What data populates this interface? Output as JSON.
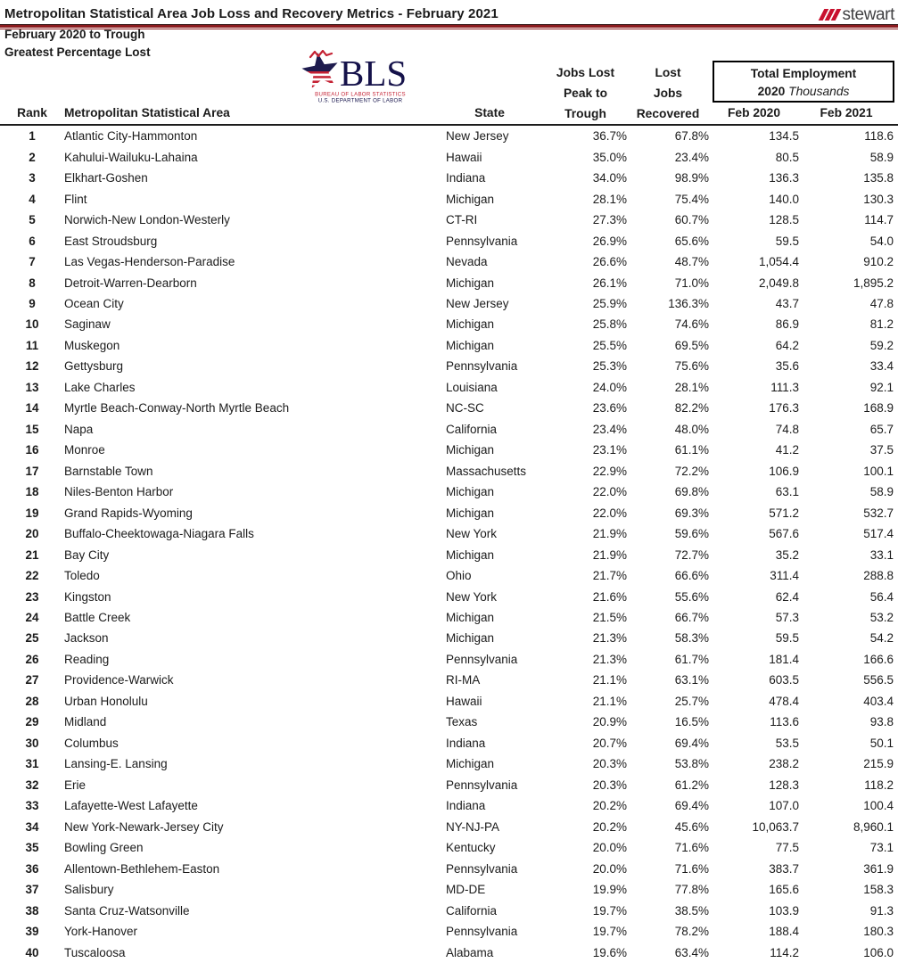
{
  "header": {
    "title": "Metropolitan Statistical Area Job Loss and Recovery Metrics - February 2021",
    "brand": "stewart",
    "subtitle_line1": "February 2020 to Trough",
    "subtitle_line2": "Greatest Percentage Lost"
  },
  "bls_logo": {
    "acronym": "BLS",
    "line1": "BUREAU OF LABOR STATISTICS",
    "line2": "U.S. DEPARTMENT OF LABOR"
  },
  "columns": {
    "rank": "Rank",
    "msa": "Metropolitan Statistical Area",
    "state": "State",
    "jobs_lost_lines": [
      "Jobs Lost",
      "Peak to",
      "Trough"
    ],
    "recovered_lines": [
      "Lost",
      "Jobs",
      "Recovered"
    ],
    "total_employment": {
      "line1": "Total Employment",
      "year": "2020",
      "unit": "Thousands"
    },
    "feb2020": "Feb 2020",
    "feb2021": "Feb 2021"
  },
  "colors": {
    "title_rule_red": "#8c1c1f",
    "stewart_red": "#c8102e",
    "stewart_gray": "#414143",
    "bls_navy": "#1e1b4e",
    "bls_red": "#c42032",
    "text": "#1b1b1b"
  },
  "table": {
    "rows": [
      [
        "1",
        "Atlantic City-Hammonton",
        "New Jersey",
        "36.7%",
        "67.8%",
        "134.5",
        "118.6"
      ],
      [
        "2",
        "Kahului-Wailuku-Lahaina",
        "Hawaii",
        "35.0%",
        "23.4%",
        "80.5",
        "58.9"
      ],
      [
        "3",
        "Elkhart-Goshen",
        "Indiana",
        "34.0%",
        "98.9%",
        "136.3",
        "135.8"
      ],
      [
        "4",
        "Flint",
        "Michigan",
        "28.1%",
        "75.4%",
        "140.0",
        "130.3"
      ],
      [
        "5",
        "Norwich-New London-Westerly",
        "CT-RI",
        "27.3%",
        "60.7%",
        "128.5",
        "114.7"
      ],
      [
        "6",
        "East Stroudsburg",
        "Pennsylvania",
        "26.9%",
        "65.6%",
        "59.5",
        "54.0"
      ],
      [
        "7",
        "Las Vegas-Henderson-Paradise",
        "Nevada",
        "26.6%",
        "48.7%",
        "1,054.4",
        "910.2"
      ],
      [
        "8",
        "Detroit-Warren-Dearborn",
        "Michigan",
        "26.1%",
        "71.0%",
        "2,049.8",
        "1,895.2"
      ],
      [
        "9",
        "Ocean City",
        "New Jersey",
        "25.9%",
        "136.3%",
        "43.7",
        "47.8"
      ],
      [
        "10",
        "Saginaw",
        "Michigan",
        "25.8%",
        "74.6%",
        "86.9",
        "81.2"
      ],
      [
        "11",
        "Muskegon",
        "Michigan",
        "25.5%",
        "69.5%",
        "64.2",
        "59.2"
      ],
      [
        "12",
        "Gettysburg",
        "Pennsylvania",
        "25.3%",
        "75.6%",
        "35.6",
        "33.4"
      ],
      [
        "13",
        "Lake Charles",
        "Louisiana",
        "24.0%",
        "28.1%",
        "111.3",
        "92.1"
      ],
      [
        "14",
        "Myrtle Beach-Conway-North Myrtle Beach",
        "NC-SC",
        "23.6%",
        "82.2%",
        "176.3",
        "168.9"
      ],
      [
        "15",
        "Napa",
        "California",
        "23.4%",
        "48.0%",
        "74.8",
        "65.7"
      ],
      [
        "16",
        "Monroe",
        "Michigan",
        "23.1%",
        "61.1%",
        "41.2",
        "37.5"
      ],
      [
        "17",
        "Barnstable Town",
        "Massachusetts",
        "22.9%",
        "72.2%",
        "106.9",
        "100.1"
      ],
      [
        "18",
        "Niles-Benton Harbor",
        "Michigan",
        "22.0%",
        "69.8%",
        "63.1",
        "58.9"
      ],
      [
        "19",
        "Grand Rapids-Wyoming",
        "Michigan",
        "22.0%",
        "69.3%",
        "571.2",
        "532.7"
      ],
      [
        "20",
        "Buffalo-Cheektowaga-Niagara Falls",
        "New York",
        "21.9%",
        "59.6%",
        "567.6",
        "517.4"
      ],
      [
        "21",
        "Bay City",
        "Michigan",
        "21.9%",
        "72.7%",
        "35.2",
        "33.1"
      ],
      [
        "22",
        "Toledo",
        "Ohio",
        "21.7%",
        "66.6%",
        "311.4",
        "288.8"
      ],
      [
        "23",
        "Kingston",
        "New York",
        "21.6%",
        "55.6%",
        "62.4",
        "56.4"
      ],
      [
        "24",
        "Battle Creek",
        "Michigan",
        "21.5%",
        "66.7%",
        "57.3",
        "53.2"
      ],
      [
        "25",
        "Jackson",
        "Michigan",
        "21.3%",
        "58.3%",
        "59.5",
        "54.2"
      ],
      [
        "26",
        "Reading",
        "Pennsylvania",
        "21.3%",
        "61.7%",
        "181.4",
        "166.6"
      ],
      [
        "27",
        "Providence-Warwick",
        "RI-MA",
        "21.1%",
        "63.1%",
        "603.5",
        "556.5"
      ],
      [
        "28",
        "Urban Honolulu",
        "Hawaii",
        "21.1%",
        "25.7%",
        "478.4",
        "403.4"
      ],
      [
        "29",
        "Midland",
        "Texas",
        "20.9%",
        "16.5%",
        "113.6",
        "93.8"
      ],
      [
        "30",
        "Columbus",
        "Indiana",
        "20.7%",
        "69.4%",
        "53.5",
        "50.1"
      ],
      [
        "31",
        "Lansing-E. Lansing",
        "Michigan",
        "20.3%",
        "53.8%",
        "238.2",
        "215.9"
      ],
      [
        "32",
        "Erie",
        "Pennsylvania",
        "20.3%",
        "61.2%",
        "128.3",
        "118.2"
      ],
      [
        "33",
        "Lafayette-West Lafayette",
        "Indiana",
        "20.2%",
        "69.4%",
        "107.0",
        "100.4"
      ],
      [
        "34",
        "New York-Newark-Jersey City",
        "NY-NJ-PA",
        "20.2%",
        "45.6%",
        "10,063.7",
        "8,960.1"
      ],
      [
        "35",
        "Bowling Green",
        "Kentucky",
        "20.0%",
        "71.6%",
        "77.5",
        "73.1"
      ],
      [
        "36",
        "Allentown-Bethlehem-Easton",
        "Pennsylvania",
        "20.0%",
        "71.6%",
        "383.7",
        "361.9"
      ],
      [
        "37",
        "Salisbury",
        "MD-DE",
        "19.9%",
        "77.8%",
        "165.6",
        "158.3"
      ],
      [
        "38",
        "Santa Cruz-Watsonville",
        "California",
        "19.7%",
        "38.5%",
        "103.9",
        "91.3"
      ],
      [
        "39",
        "York-Hanover",
        "Pennsylvania",
        "19.7%",
        "78.2%",
        "188.4",
        "180.3"
      ],
      [
        "40",
        "Tuscaloosa",
        "Alabama",
        "19.6%",
        "63.4%",
        "114.2",
        "106.0"
      ]
    ]
  }
}
